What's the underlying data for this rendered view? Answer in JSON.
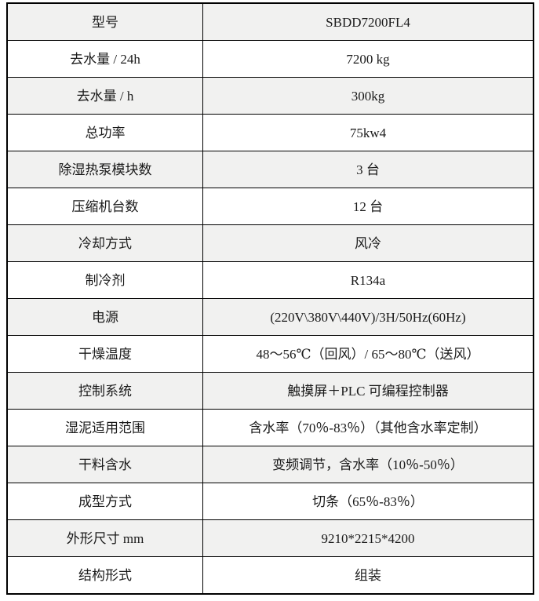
{
  "table": {
    "shade_color": "#f1f1f0",
    "border_color": "#000000",
    "rows": [
      {
        "label": "型号",
        "value": "SBDD7200FL4"
      },
      {
        "label": "去水量 / 24h",
        "value": "7200 kg"
      },
      {
        "label": "去水量 / h",
        "value": "300kg"
      },
      {
        "label": "总功率",
        "value": "75kw4"
      },
      {
        "label": "除湿热泵模块数",
        "value": "3 台"
      },
      {
        "label": "压缩机台数",
        "value": "12 台"
      },
      {
        "label": "冷却方式",
        "value": "风冷"
      },
      {
        "label": "制冷剂",
        "value": "R134a"
      },
      {
        "label": "电源",
        "value": "(220V\\380V\\440V)/3H/50Hz(60Hz)"
      },
      {
        "label": "干燥温度",
        "value": "48～56℃（回风）/ 65～80℃（送风）"
      },
      {
        "label": "控制系统",
        "value": "触摸屏＋PLC 可编程控制器"
      },
      {
        "label": "湿泥适用范围",
        "value": "含水率（70％-83％）（其他含水率定制）"
      },
      {
        "label": "干料含水",
        "value": "变频调节，含水率（10％-50％）"
      },
      {
        "label": "成型方式",
        "value": "切条（65％-83％）"
      },
      {
        "label": "外形尺寸 mm",
        "value": "9210*2215*4200"
      },
      {
        "label": "结构形式",
        "value": "组装"
      }
    ]
  }
}
